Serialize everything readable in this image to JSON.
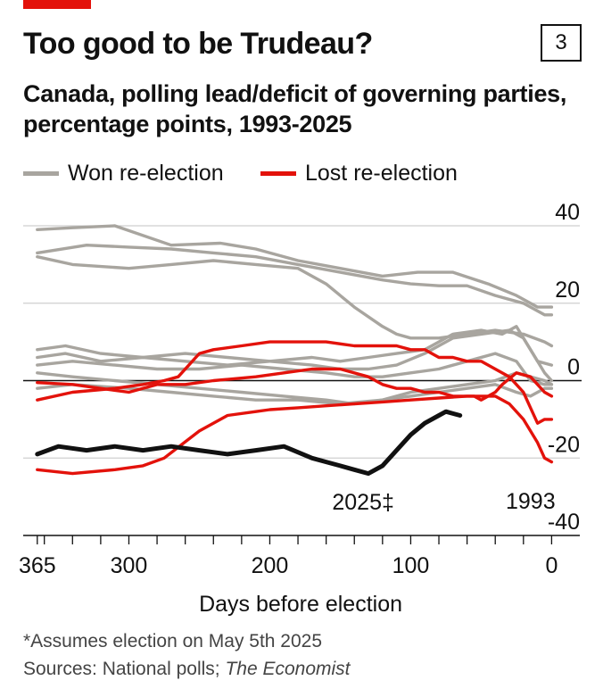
{
  "header": {
    "title": "Too good to be Trudeau?",
    "chart_number": "3",
    "subtitle_line1": "Canada, polling lead/deficit of governing parties,",
    "subtitle_line2": "percentage points, 1993-2025"
  },
  "colors": {
    "won": "#a8a59f",
    "lost": "#e3120b",
    "current": "#111111",
    "accent": "#e3120b",
    "grid": "#cfcfcf"
  },
  "footer": {
    "footnote": "*Assumes election on May 5th 2025",
    "sources_prefix": "Sources: National polls; ",
    "sources_italic": "The Economist"
  },
  "chart_data": {
    "type": "line",
    "title": "Too good to be Trudeau?",
    "subtitle": "Canada, polling lead/deficit of governing parties, percentage points, 1993-2025",
    "xlabel": "Days before election",
    "ylabel": "",
    "xlim": [
      375,
      -20
    ],
    "ylim": [
      -40,
      40
    ],
    "x_ticks": [
      365,
      300,
      200,
      100,
      0
    ],
    "y_ticks": [
      40,
      20,
      0,
      -20,
      -40
    ],
    "y_tick_labels": [
      "40",
      "20",
      "0",
      "-20",
      "-40"
    ],
    "grid": true,
    "legend": [
      {
        "label": "Won re-election",
        "color": "#a8a59f"
      },
      {
        "label": "Lost re-election",
        "color": "#e3120b"
      }
    ],
    "annotations": [
      {
        "text": "2025*",
        "series": "2025"
      },
      {
        "text": "1993",
        "series": "1993"
      }
    ],
    "series": [
      {
        "group": "won",
        "x": [
          365,
          340,
          310,
          270,
          235,
          210,
          180,
          150,
          120,
          95,
          70,
          45,
          25,
          10,
          0
        ],
        "y": [
          39,
          39.5,
          40,
          35,
          35.5,
          34,
          31,
          29,
          27,
          28,
          28,
          25,
          22,
          19,
          19
        ]
      },
      {
        "group": "won",
        "x": [
          365,
          330,
          300,
          270,
          240,
          210,
          180,
          150,
          120,
          100,
          80,
          60,
          40,
          20,
          5,
          0
        ],
        "y": [
          33,
          35,
          34.5,
          34,
          33,
          32,
          30,
          28,
          26,
          25,
          24.5,
          24.5,
          22,
          20,
          17,
          17
        ]
      },
      {
        "group": "won",
        "x": [
          365,
          340,
          300,
          270,
          240,
          210,
          180,
          160,
          140,
          120,
          110,
          100,
          80,
          60,
          40,
          20,
          5,
          0
        ],
        "y": [
          32,
          30,
          29,
          30,
          31,
          30,
          29,
          25,
          19,
          14,
          12,
          11,
          11,
          12,
          13,
          12,
          10,
          9
        ]
      },
      {
        "group": "won",
        "x": [
          365,
          345,
          320,
          290,
          260,
          230,
          200,
          170,
          150,
          130,
          110,
          90,
          70,
          50,
          30,
          20,
          10,
          0
        ],
        "y": [
          8,
          9,
          7,
          6,
          7,
          6,
          5,
          4,
          3,
          3,
          4,
          7,
          11,
          12,
          13,
          11,
          5,
          4
        ]
      },
      {
        "group": "won",
        "x": [
          365,
          345,
          320,
          290,
          260,
          230,
          200,
          170,
          150,
          130,
          110,
          90,
          70,
          50,
          35,
          25,
          15,
          5,
          0
        ],
        "y": [
          6,
          7,
          5,
          6,
          5,
          4,
          5,
          6,
          5,
          6,
          7,
          8,
          12,
          13,
          12,
          14,
          8,
          2,
          0
        ]
      },
      {
        "group": "won",
        "x": [
          365,
          340,
          310,
          280,
          250,
          220,
          190,
          160,
          140,
          120,
          100,
          80,
          60,
          40,
          25,
          15,
          5,
          0
        ],
        "y": [
          4,
          5,
          4,
          3,
          3,
          4,
          3,
          2,
          1,
          1,
          2,
          3,
          5,
          7,
          5,
          0,
          -1,
          -1
        ]
      },
      {
        "group": "won",
        "x": [
          365,
          340,
          310,
          280,
          250,
          220,
          190,
          160,
          140,
          120,
          100,
          80,
          60,
          40,
          25,
          15,
          5,
          0
        ],
        "y": [
          2,
          1,
          0,
          -1,
          -2,
          -3,
          -4,
          -5,
          -6,
          -5,
          -3,
          -2,
          -1,
          0,
          2,
          1,
          0,
          -1
        ]
      },
      {
        "group": "won",
        "x": [
          365,
          340,
          300,
          270,
          240,
          210,
          180,
          150,
          120,
          100,
          80,
          60,
          40,
          25,
          15,
          5,
          0
        ],
        "y": [
          -2,
          -1,
          -2,
          -3,
          -4,
          -5,
          -5,
          -6,
          -5,
          -4,
          -3,
          -2,
          -1,
          -3,
          -4,
          -2,
          -2
        ]
      },
      {
        "group": "lost",
        "x": [
          365,
          340,
          310,
          290,
          275,
          265,
          250,
          240,
          220,
          200,
          180,
          160,
          140,
          120,
          110,
          100,
          90,
          80,
          70,
          60,
          50,
          45,
          40,
          30,
          20,
          15,
          10,
          5,
          0
        ],
        "y": [
          -5,
          -3,
          -2,
          -1,
          0,
          1,
          7,
          8,
          9,
          10,
          10,
          10,
          9,
          9,
          9,
          8,
          8,
          6,
          6,
          5,
          5,
          4,
          3,
          1,
          -3,
          -7,
          -11,
          -10,
          -10
        ]
      },
      {
        "group": "lost",
        "x": [
          365,
          340,
          320,
          300,
          280,
          260,
          240,
          210,
          190,
          170,
          150,
          130,
          120,
          110,
          100,
          90,
          80,
          70,
          60,
          55,
          50,
          45,
          40,
          35,
          25,
          15,
          5,
          0
        ],
        "y": [
          -0.5,
          -1,
          -2,
          -3,
          -1,
          -1,
          0,
          1,
          2,
          3,
          3,
          1,
          -1,
          -2,
          -2,
          -3,
          -3,
          -4,
          -4,
          -4,
          -5,
          -4,
          -3,
          -1,
          2,
          1,
          -3,
          -4
        ]
      },
      {
        "group": "lost",
        "x": [
          365,
          340,
          310,
          290,
          275,
          250,
          230,
          210,
          200,
          180,
          160,
          140,
          120,
          100,
          80,
          60,
          40,
          30,
          20,
          10,
          5,
          0
        ],
        "y": [
          -23,
          -24,
          -23,
          -22,
          -20,
          -13,
          -9,
          -8,
          -7.5,
          -7,
          -6.5,
          -6,
          -5.5,
          -5,
          -4.5,
          -4,
          -4,
          -6,
          -10,
          -16,
          -20,
          -21
        ]
      },
      {
        "group": "current",
        "x": [
          365,
          350,
          330,
          310,
          290,
          270,
          250,
          230,
          210,
          190,
          170,
          160,
          150,
          140,
          130,
          120,
          110,
          100,
          90,
          80,
          75,
          70,
          65
        ],
        "y": [
          -19,
          -17,
          -18,
          -17,
          -18,
          -17,
          -18,
          -19,
          -18,
          -17,
          -20,
          -21,
          -22,
          -23,
          -24,
          -22,
          -18,
          -14,
          -11,
          -9,
          -8,
          -8.5,
          -9
        ]
      }
    ]
  }
}
